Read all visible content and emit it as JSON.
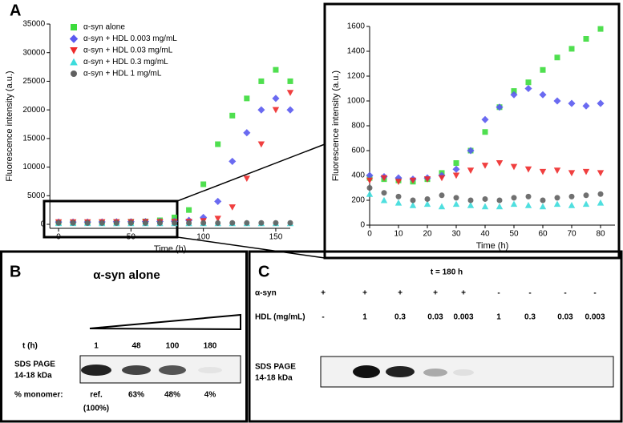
{
  "chart_data": [
    {
      "type": "scatter",
      "panel_label": "A",
      "xlabel": "Time (h)",
      "ylabel": "Fluorescence intensity (a.u.)",
      "x": [
        0,
        10,
        20,
        30,
        40,
        50,
        60,
        70,
        80,
        90,
        100,
        110,
        120,
        130,
        140,
        150,
        160
      ],
      "series": [
        {
          "name": "α-syn alone",
          "color": "#3cdc3c",
          "marker": "square",
          "values": [
            300,
            320,
            330,
            350,
            400,
            450,
            500,
            700,
            1200,
            2500,
            7000,
            14000,
            19000,
            22000,
            25000,
            27000,
            25000
          ]
        },
        {
          "name": "α-syn + HDL 0.003 mg/mL",
          "color": "#5a5af0",
          "marker": "diamond",
          "values": [
            400,
            400,
            400,
            420,
            450,
            450,
            480,
            500,
            550,
            700,
            1200,
            4000,
            11000,
            16000,
            20000,
            22000,
            20000
          ]
        },
        {
          "name": "α-syn + HDL 0.03 mg/mL",
          "color": "#ee2a2a",
          "marker": "triangle-down",
          "values": [
            380,
            380,
            390,
            400,
            400,
            420,
            430,
            440,
            450,
            480,
            600,
            1000,
            3000,
            8000,
            14000,
            20000,
            23000
          ]
        },
        {
          "name": "α-syn + HDL 0.3 mg/mL",
          "color": "#3cdcdc",
          "marker": "triangle-up",
          "values": [
            200,
            200,
            190,
            180,
            180,
            170,
            170,
            180,
            170,
            180,
            180,
            170,
            180,
            180,
            170,
            180,
            180
          ]
        },
        {
          "name": "α-syn + HDL 1 mg/mL",
          "color": "#606060",
          "marker": "circle",
          "values": [
            250,
            240,
            230,
            220,
            220,
            230,
            220,
            230,
            240,
            230,
            240,
            230,
            240,
            250,
            240,
            250,
            250
          ]
        }
      ],
      "xlim": [
        -6,
        160
      ],
      "xticks": [
        0,
        50,
        100,
        150
      ],
      "ylim": [
        -700,
        35000
      ],
      "yticks": [
        0,
        5000,
        10000,
        15000,
        20000,
        25000,
        30000,
        35000
      ]
    },
    {
      "type": "scatter",
      "xlabel": "Time (h)",
      "ylabel": "Fluorescence intensity (a.u.)",
      "x": [
        0,
        5,
        10,
        15,
        20,
        25,
        30,
        35,
        40,
        45,
        50,
        55,
        60,
        65,
        70,
        75,
        80
      ],
      "series": [
        {
          "name": "α-syn alone",
          "color": "#3cdc3c",
          "marker": "square",
          "values": [
            380,
            370,
            360,
            350,
            370,
            420,
            500,
            600,
            750,
            950,
            1080,
            1150,
            1250,
            1350,
            1420,
            1500,
            1580
          ]
        },
        {
          "name": "α-syn + HDL 0.003 mg/mL",
          "color": "#5a5af0",
          "marker": "diamond",
          "values": [
            400,
            390,
            380,
            370,
            380,
            400,
            450,
            600,
            850,
            950,
            1050,
            1100,
            1050,
            1000,
            980,
            960,
            980
          ]
        },
        {
          "name": "α-syn + HDL 0.03 mg/mL",
          "color": "#ee2a2a",
          "marker": "triangle-down",
          "values": [
            360,
            380,
            350,
            360,
            370,
            380,
            400,
            440,
            480,
            500,
            470,
            450,
            430,
            440,
            420,
            430,
            420
          ]
        },
        {
          "name": "α-syn + HDL 0.3 mg/mL",
          "color": "#3cdcdc",
          "marker": "triangle-up",
          "values": [
            250,
            200,
            180,
            160,
            170,
            150,
            170,
            160,
            150,
            150,
            170,
            160,
            150,
            170,
            160,
            170,
            180
          ]
        },
        {
          "name": "α-syn + HDL 1 mg/mL",
          "color": "#606060",
          "marker": "circle",
          "values": [
            300,
            260,
            230,
            200,
            210,
            240,
            220,
            200,
            210,
            200,
            220,
            230,
            200,
            220,
            230,
            240,
            250
          ]
        }
      ],
      "xlim": [
        0,
        85
      ],
      "xticks": [
        0,
        10,
        20,
        30,
        40,
        50,
        60,
        70,
        80
      ],
      "ylim": [
        0,
        1600
      ],
      "yticks": [
        0,
        200,
        400,
        600,
        800,
        1000,
        1200,
        1400,
        1600
      ]
    }
  ],
  "panel_b": {
    "label": "B",
    "title": "α-syn alone",
    "time_label": "t (h)",
    "times": [
      "1",
      "48",
      "100",
      "180"
    ],
    "gel_label": "SDS PAGE",
    "gel_size": "14-18 kDa",
    "monomer_label": "% monomer:",
    "monomer": [
      "ref.",
      "63%",
      "48%",
      "4%"
    ],
    "monomer_ref_note": "(100%)"
  },
  "panel_c": {
    "label": "C",
    "title": "t = 180 h",
    "syn_label": "α-syn",
    "syn": [
      "+",
      "+",
      "+",
      "+",
      "+",
      "-",
      "-",
      "-",
      "-"
    ],
    "hdl_label": "HDL (mg/mL)",
    "hdl": [
      "-",
      "1",
      "0.3",
      "0.03",
      "0.003",
      "1",
      "0.3",
      "0.03",
      "0.003"
    ],
    "gel_label": "SDS PAGE",
    "gel_size": "14-18 kDa"
  }
}
